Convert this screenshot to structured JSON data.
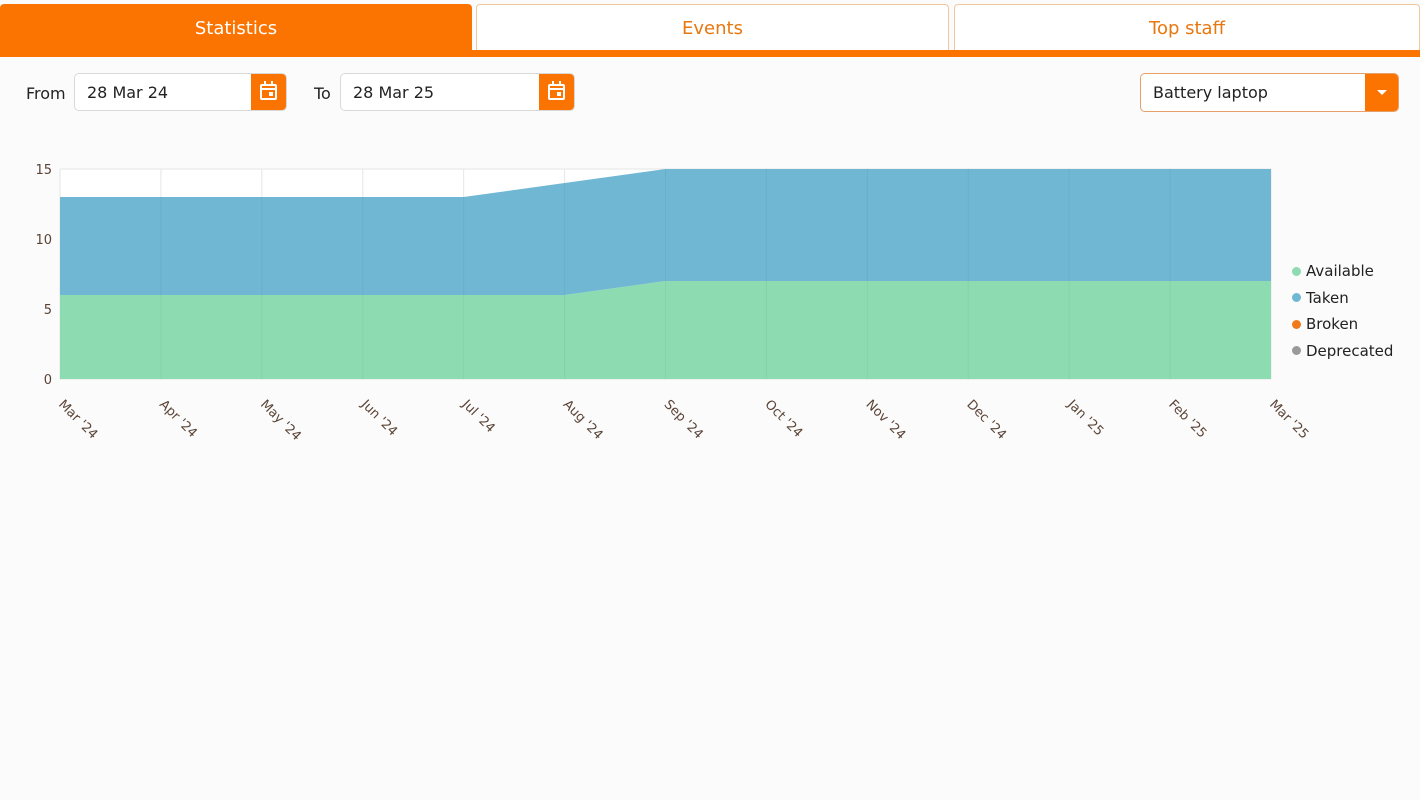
{
  "tabs": [
    {
      "label": "Statistics",
      "active": true
    },
    {
      "label": "Events",
      "active": false
    },
    {
      "label": "Top staff",
      "active": false
    }
  ],
  "filters": {
    "from_label": "From",
    "from_value": "28 Mar 24",
    "to_label": "To",
    "to_value": "28 Mar 25",
    "item_select": "Battery laptop"
  },
  "colors": {
    "accent": "#fb7300",
    "available": "#8cdbb1",
    "taken": "#6fb7d2",
    "broken": "#f07a1a",
    "deprecated": "#9a9a9a"
  },
  "chart_data": {
    "type": "area",
    "stacked": true,
    "categories": [
      "Mar '24",
      "Apr '24",
      "May '24",
      "Jun '24",
      "Jul '24",
      "Aug '24",
      "Sep '24",
      "Oct '24",
      "Nov '24",
      "Dec '24",
      "Jan '25",
      "Feb '25",
      "Mar '25"
    ],
    "series": [
      {
        "name": "Available",
        "color": "#8cdbb1",
        "values": [
          6,
          6,
          6,
          6,
          6,
          6,
          7,
          7,
          7,
          7,
          7,
          7,
          7
        ]
      },
      {
        "name": "Taken",
        "color": "#6fb7d2",
        "values": [
          7,
          7,
          7,
          7,
          7,
          8,
          8,
          8,
          8,
          8,
          8,
          8,
          8
        ]
      },
      {
        "name": "Broken",
        "color": "#f07a1a",
        "values": [
          0,
          0,
          0,
          0,
          0,
          0,
          0,
          0,
          0,
          0,
          0,
          0,
          0
        ]
      },
      {
        "name": "Deprecated",
        "color": "#9a9a9a",
        "values": [
          0,
          0,
          0,
          0,
          0,
          0,
          0,
          0,
          0,
          0,
          0,
          0,
          0
        ]
      }
    ],
    "y_ticks": [
      0,
      5,
      10,
      15
    ],
    "ylim": [
      0,
      15
    ],
    "grid": true,
    "legend_position": "right"
  }
}
